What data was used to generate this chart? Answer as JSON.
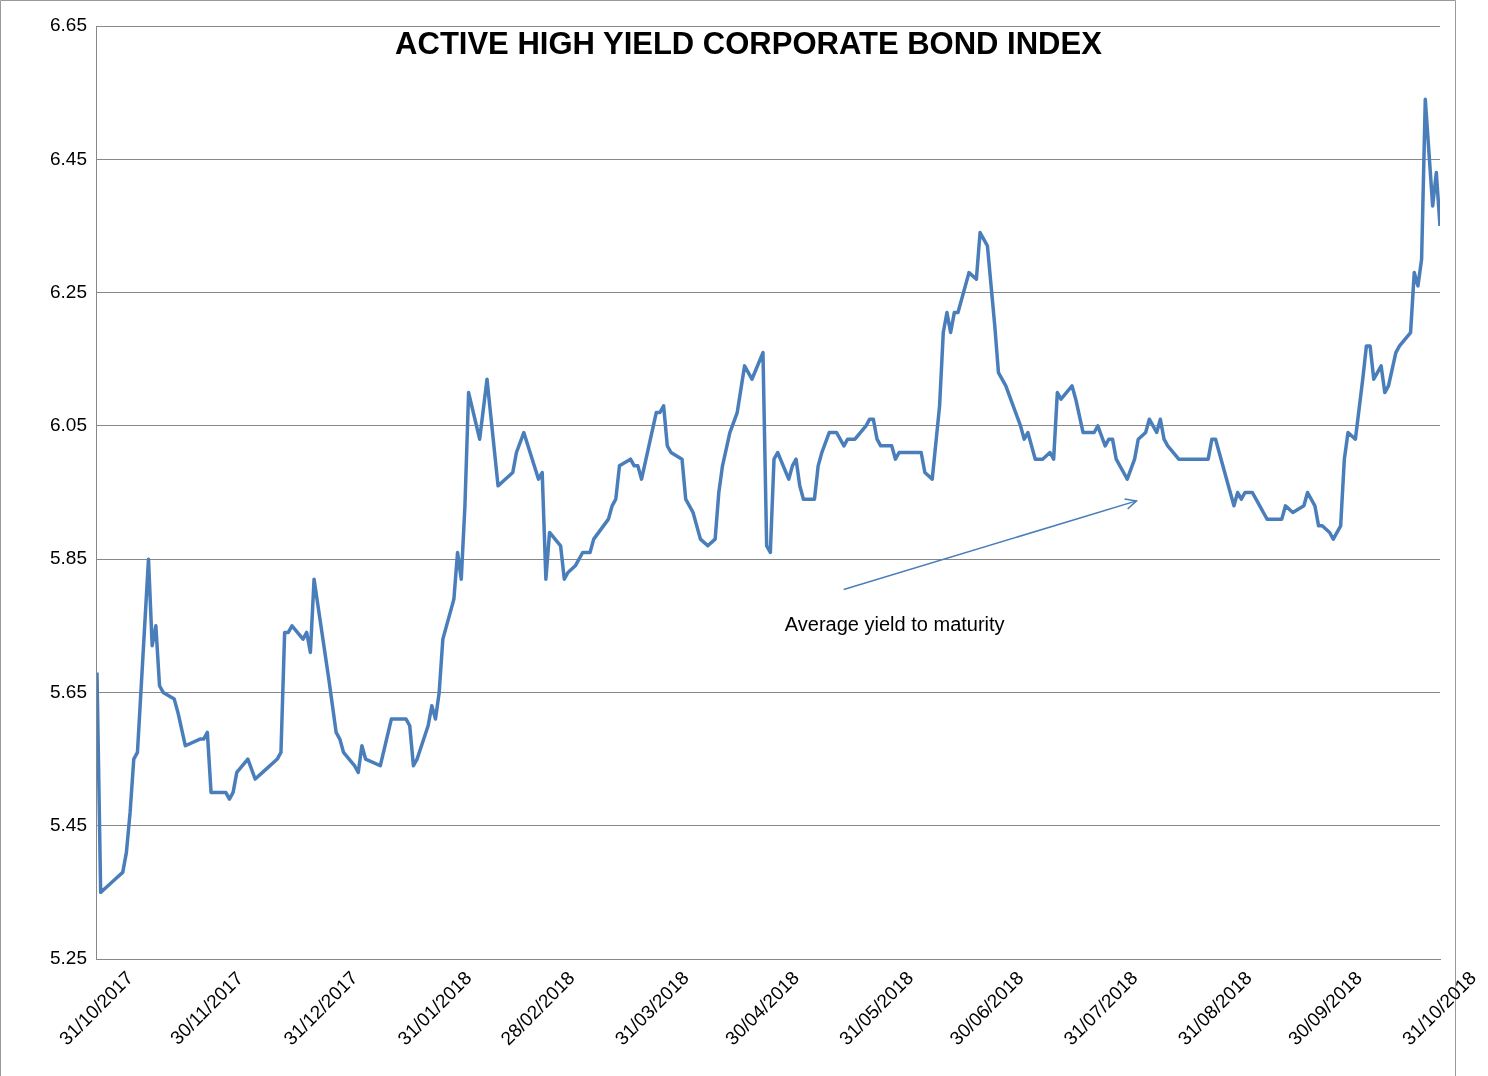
{
  "chart_data": {
    "type": "line",
    "title": "ACTIVE HIGH YIELD CORPORATE BOND INDEX",
    "annotations": [
      "Average yield to maturity"
    ],
    "xlim": [
      "2017-10-31",
      "2018-10-31"
    ],
    "xticks": [
      {
        "value": "2017-10-31",
        "label": "31/10/2017"
      },
      {
        "value": "2017-11-30",
        "label": "30/11/2017"
      },
      {
        "value": "2017-12-31",
        "label": "31/12/2017"
      },
      {
        "value": "2018-01-31",
        "label": "31/01/2018"
      },
      {
        "value": "2018-02-28",
        "label": "28/02/2018"
      },
      {
        "value": "2018-03-31",
        "label": "31/03/2018"
      },
      {
        "value": "2018-04-30",
        "label": "30/04/2018"
      },
      {
        "value": "2018-05-31",
        "label": "31/05/2018"
      },
      {
        "value": "2018-06-30",
        "label": "30/06/2018"
      },
      {
        "value": "2018-07-31",
        "label": "31/07/2018"
      },
      {
        "value": "2018-08-31",
        "label": "31/08/2018"
      },
      {
        "value": "2018-09-30",
        "label": "30/09/2018"
      },
      {
        "value": "2018-10-31",
        "label": "31/10/2018"
      }
    ],
    "ylim": [
      5.25,
      6.65
    ],
    "yticks": [
      5.25,
      5.45,
      5.65,
      5.85,
      6.05,
      6.25,
      6.45,
      6.65
    ],
    "grid": "y",
    "legend": false,
    "marker": "none",
    "line_style": "solid",
    "series": [
      {
        "color": "#4a7ebb",
        "x": [
          "2017-10-31",
          "2017-11-01",
          "2017-11-03",
          "2017-11-05",
          "2017-11-07",
          "2017-11-08",
          "2017-11-09",
          "2017-11-10",
          "2017-11-11",
          "2017-11-14",
          "2017-11-15",
          "2017-11-16",
          "2017-11-17",
          "2017-11-18",
          "2017-11-21",
          "2017-11-22",
          "2017-11-24",
          "2017-11-28",
          "2017-11-29",
          "2017-11-30",
          "2017-12-01",
          "2017-12-05",
          "2017-12-06",
          "2017-12-07",
          "2017-12-08",
          "2017-12-11",
          "2017-12-13",
          "2017-12-15",
          "2017-12-19",
          "2017-12-20",
          "2017-12-21",
          "2017-12-22",
          "2017-12-23",
          "2017-12-26",
          "2017-12-27",
          "2017-12-28",
          "2017-12-29",
          "2018-01-02",
          "2018-01-04",
          "2018-01-05",
          "2018-01-06",
          "2018-01-09",
          "2018-01-10",
          "2018-01-11",
          "2018-01-12",
          "2018-01-16",
          "2018-01-19",
          "2018-01-23",
          "2018-01-24",
          "2018-01-25",
          "2018-01-26",
          "2018-01-29",
          "2018-01-30",
          "2018-01-31",
          "2018-02-01",
          "2018-02-02",
          "2018-02-05",
          "2018-02-06",
          "2018-02-07",
          "2018-02-08",
          "2018-02-09",
          "2018-02-12",
          "2018-02-14",
          "2018-02-17",
          "2018-02-21",
          "2018-02-22",
          "2018-02-24",
          "2018-02-28",
          "2018-03-01",
          "2018-03-02",
          "2018-03-03",
          "2018-03-06",
          "2018-03-07",
          "2018-03-08",
          "2018-03-10",
          "2018-03-12",
          "2018-03-14",
          "2018-03-15",
          "2018-03-19",
          "2018-03-20",
          "2018-03-21",
          "2018-03-22",
          "2018-03-25",
          "2018-03-26",
          "2018-03-27",
          "2018-03-28",
          "2018-04-01",
          "2018-04-02",
          "2018-04-03",
          "2018-04-04",
          "2018-04-05",
          "2018-04-08",
          "2018-04-09",
          "2018-04-11",
          "2018-04-13",
          "2018-04-15",
          "2018-04-17",
          "2018-04-18",
          "2018-04-19",
          "2018-04-21",
          "2018-04-23",
          "2018-04-25",
          "2018-04-27",
          "2018-04-30",
          "2018-05-01",
          "2018-05-02",
          "2018-05-03",
          "2018-05-04",
          "2018-05-07",
          "2018-05-08",
          "2018-05-09",
          "2018-05-10",
          "2018-05-11",
          "2018-05-14",
          "2018-05-15",
          "2018-05-16",
          "2018-05-18",
          "2018-05-20",
          "2018-05-22",
          "2018-05-23",
          "2018-05-25",
          "2018-05-28",
          "2018-05-29",
          "2018-05-30",
          "2018-05-31",
          "2018-06-01",
          "2018-06-04",
          "2018-06-05",
          "2018-06-06",
          "2018-06-08",
          "2018-06-12",
          "2018-06-13",
          "2018-06-15",
          "2018-06-17",
          "2018-06-18",
          "2018-06-19",
          "2018-06-20",
          "2018-06-21",
          "2018-06-22",
          "2018-06-24",
          "2018-06-25",
          "2018-06-27",
          "2018-06-28",
          "2018-06-30",
          "2018-07-02",
          "2018-07-03",
          "2018-07-05",
          "2018-07-07",
          "2018-07-09",
          "2018-07-10",
          "2018-07-11",
          "2018-07-12",
          "2018-07-13",
          "2018-07-15",
          "2018-07-17",
          "2018-07-18",
          "2018-07-19",
          "2018-07-20",
          "2018-07-23",
          "2018-07-24",
          "2018-07-26",
          "2018-07-27",
          "2018-07-29",
          "2018-07-30",
          "2018-08-01",
          "2018-08-02",
          "2018-08-03",
          "2018-08-04",
          "2018-08-06",
          "2018-08-07",
          "2018-08-09",
          "2018-08-10",
          "2018-08-12",
          "2018-08-13",
          "2018-08-15",
          "2018-08-16",
          "2018-08-17",
          "2018-08-18",
          "2018-08-21",
          "2018-08-23",
          "2018-08-24",
          "2018-08-25",
          "2018-08-27",
          "2018-08-29",
          "2018-08-30",
          "2018-08-31",
          "2018-09-03",
          "2018-09-05",
          "2018-09-06",
          "2018-09-07",
          "2018-09-08",
          "2018-09-10",
          "2018-09-11",
          "2018-09-13",
          "2018-09-14",
          "2018-09-16",
          "2018-09-18",
          "2018-09-19",
          "2018-09-21",
          "2018-09-24",
          "2018-09-25",
          "2018-09-27",
          "2018-09-28",
          "2018-09-29",
          "2018-10-01",
          "2018-10-02",
          "2018-10-04",
          "2018-10-05",
          "2018-10-06",
          "2018-10-08",
          "2018-10-10",
          "2018-10-11",
          "2018-10-12",
          "2018-10-13",
          "2018-10-15",
          "2018-10-16",
          "2018-10-17",
          "2018-10-19",
          "2018-10-20",
          "2018-10-23",
          "2018-10-24",
          "2018-10-25",
          "2018-10-26",
          "2018-10-27",
          "2018-10-29",
          "2018-10-30",
          "2018-10-31"
        ],
        "values": [
          5.68,
          5.35,
          5.36,
          5.37,
          5.38,
          5.41,
          5.47,
          5.55,
          5.56,
          5.85,
          5.72,
          5.75,
          5.66,
          5.65,
          5.64,
          5.62,
          5.57,
          5.58,
          5.58,
          5.59,
          5.5,
          5.5,
          5.49,
          5.5,
          5.53,
          5.55,
          5.52,
          5.53,
          5.55,
          5.56,
          5.74,
          5.74,
          5.75,
          5.73,
          5.74,
          5.71,
          5.82,
          5.67,
          5.59,
          5.58,
          5.56,
          5.54,
          5.53,
          5.57,
          5.55,
          5.54,
          5.61,
          5.61,
          5.6,
          5.54,
          5.55,
          5.6,
          5.63,
          5.61,
          5.65,
          5.73,
          5.79,
          5.86,
          5.82,
          5.93,
          6.1,
          6.03,
          6.12,
          5.96,
          5.98,
          6.01,
          6.04,
          5.97,
          5.98,
          5.82,
          5.89,
          5.87,
          5.82,
          5.83,
          5.84,
          5.86,
          5.86,
          5.88,
          5.91,
          5.93,
          5.94,
          5.99,
          6.0,
          5.99,
          5.99,
          5.97,
          6.07,
          6.07,
          6.08,
          6.02,
          6.01,
          6.0,
          5.94,
          5.92,
          5.88,
          5.87,
          5.88,
          5.95,
          5.99,
          6.04,
          6.07,
          6.14,
          6.12,
          6.16,
          5.87,
          5.86,
          6.0,
          6.01,
          5.97,
          5.99,
          6.0,
          5.96,
          5.94,
          5.94,
          5.99,
          6.01,
          6.04,
          6.04,
          6.02,
          6.03,
          6.03,
          6.05,
          6.06,
          6.06,
          6.03,
          6.02,
          6.02,
          6.0,
          6.01,
          6.01,
          6.01,
          5.98,
          5.97,
          6.08,
          6.19,
          6.22,
          6.19,
          6.22,
          6.22,
          6.26,
          6.28,
          6.27,
          6.34,
          6.32,
          6.2,
          6.13,
          6.11,
          6.08,
          6.05,
          6.03,
          6.04,
          6.02,
          6.0,
          6.0,
          6.01,
          6.0,
          6.1,
          6.09,
          6.11,
          6.09,
          6.04,
          6.04,
          6.04,
          6.05,
          6.02,
          6.03,
          6.03,
          6.0,
          5.98,
          5.97,
          6.0,
          6.03,
          6.04,
          6.06,
          6.04,
          6.06,
          6.03,
          6.02,
          6.0,
          6.0,
          6.0,
          6.0,
          6.0,
          6.0,
          6.03,
          6.03,
          5.97,
          5.93,
          5.95,
          5.94,
          5.95,
          5.95,
          5.94,
          5.92,
          5.91,
          5.91,
          5.91,
          5.93,
          5.92,
          5.93,
          5.95,
          5.93,
          5.9,
          5.9,
          5.89,
          5.88,
          5.9,
          6.0,
          6.04,
          6.03,
          6.12,
          6.17,
          6.17,
          6.12,
          6.14,
          6.1,
          6.11,
          6.16,
          6.17,
          6.19,
          6.28,
          6.26,
          6.3,
          6.54,
          6.38,
          6.43,
          6.35
        ]
      }
    ]
  }
}
